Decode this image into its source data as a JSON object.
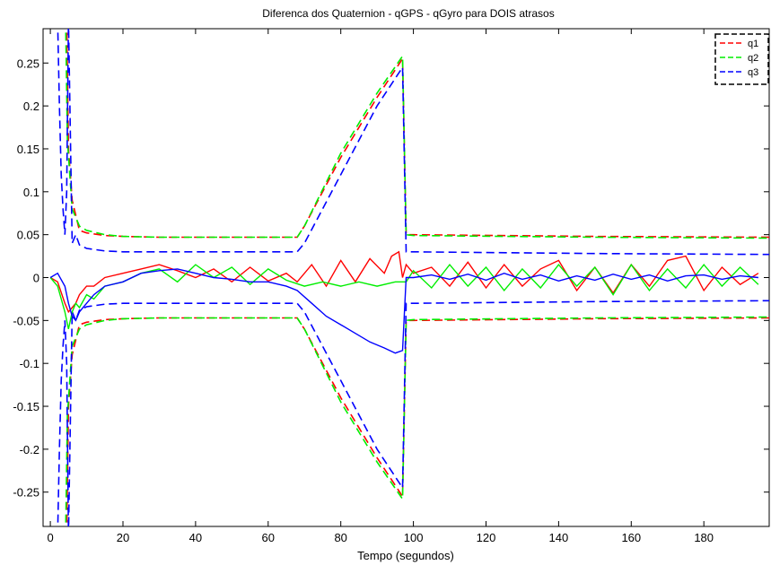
{
  "chart_data": {
    "type": "line",
    "title": "Diferenca dos Quaternion - qGPS - qGyro para DOIS atrasos",
    "xlabel": "Tempo (segundos)",
    "ylabel": "",
    "xlim": [
      -2,
      198
    ],
    "ylim": [
      -0.29,
      0.29
    ],
    "xticks": [
      0,
      20,
      40,
      60,
      80,
      100,
      120,
      140,
      160,
      180
    ],
    "yticks": [
      -0.25,
      -0.2,
      -0.15,
      -0.1,
      -0.05,
      0,
      0.05,
      0.1,
      0.15,
      0.2,
      0.25
    ],
    "xtick_labels": [
      "0",
      "20",
      "40",
      "60",
      "80",
      "100",
      "120",
      "140",
      "160",
      "180"
    ],
    "ytick_labels": [
      "-0.25",
      "-0.2",
      "-0.15",
      "-0.1",
      "-0.05",
      "0",
      "0.05",
      "0.1",
      "0.15",
      "0.2",
      "0.25"
    ],
    "grid": false,
    "legend_position": "top-right",
    "legend": [
      "q1",
      "q2",
      "q3"
    ],
    "series": [
      {
        "name": "q1",
        "color": "#ff0000",
        "values_x": [
          0,
          2,
          4,
          5,
          6,
          7,
          8,
          10,
          12,
          15,
          20,
          25,
          30,
          35,
          40,
          45,
          50,
          55,
          60,
          65,
          68,
          72,
          76,
          80,
          84,
          88,
          92,
          94,
          96,
          97,
          98,
          100,
          105,
          110,
          115,
          120,
          125,
          130,
          135,
          140,
          145,
          150,
          155,
          160,
          165,
          170,
          175,
          180,
          185,
          190,
          195
        ],
        "values_y": [
          0,
          -0.005,
          -0.03,
          -0.04,
          -0.035,
          -0.03,
          -0.02,
          -0.01,
          -0.01,
          0.0,
          0.005,
          0.01,
          0.015,
          0.008,
          0.0,
          0.01,
          -0.005,
          0.012,
          -0.004,
          0.005,
          -0.005,
          0.015,
          -0.01,
          0.02,
          -0.005,
          0.022,
          0.005,
          0.025,
          0.03,
          0.0,
          0.015,
          0.005,
          0.012,
          -0.01,
          0.018,
          -0.012,
          0.015,
          -0.01,
          0.01,
          0.02,
          -0.015,
          0.012,
          -0.018,
          0.015,
          -0.01,
          0.02,
          0.025,
          -0.015,
          0.012,
          -0.008,
          0.005
        ]
      },
      {
        "name": "q2",
        "color": "#00ee00",
        "values_x": [
          0,
          2,
          4,
          5,
          6,
          7,
          8,
          10,
          12,
          15,
          20,
          25,
          30,
          35,
          40,
          45,
          50,
          55,
          60,
          65,
          70,
          75,
          80,
          85,
          90,
          95,
          98,
          100,
          105,
          110,
          115,
          120,
          125,
          130,
          135,
          140,
          145,
          150,
          155,
          160,
          165,
          170,
          175,
          180,
          185,
          190,
          195
        ],
        "values_y": [
          0,
          -0.01,
          -0.04,
          -0.06,
          -0.04,
          -0.03,
          -0.035,
          -0.02,
          -0.025,
          -0.01,
          -0.005,
          0.005,
          0.01,
          -0.005,
          0.015,
          0.0,
          0.012,
          -0.008,
          0.01,
          -0.003,
          -0.01,
          -0.005,
          -0.01,
          -0.005,
          -0.01,
          -0.005,
          -0.005,
          0.008,
          -0.012,
          0.015,
          -0.01,
          0.012,
          -0.015,
          0.01,
          -0.012,
          0.015,
          -0.01,
          0.012,
          -0.02,
          0.015,
          -0.015,
          0.01,
          -0.012,
          0.015,
          -0.01,
          0.012,
          -0.008
        ]
      },
      {
        "name": "q3",
        "color": "#0000ff",
        "values_x": [
          0,
          2,
          4,
          5,
          6,
          7,
          8,
          10,
          12,
          15,
          20,
          25,
          30,
          35,
          40,
          45,
          50,
          55,
          60,
          65,
          68,
          72,
          76,
          80,
          84,
          88,
          92,
          95,
          97,
          98,
          100,
          105,
          110,
          115,
          120,
          125,
          130,
          135,
          140,
          145,
          150,
          155,
          160,
          165,
          170,
          175,
          180,
          185,
          190,
          195
        ],
        "values_y": [
          0,
          0.005,
          -0.01,
          -0.03,
          -0.045,
          -0.05,
          -0.04,
          -0.03,
          -0.02,
          -0.01,
          -0.005,
          0.005,
          0.008,
          0.01,
          0.005,
          0.0,
          -0.002,
          -0.005,
          -0.005,
          -0.01,
          -0.015,
          -0.03,
          -0.045,
          -0.055,
          -0.065,
          -0.075,
          -0.082,
          -0.088,
          -0.085,
          0.0,
          0.0,
          0.003,
          -0.002,
          0.004,
          -0.003,
          0.005,
          -0.002,
          0.003,
          -0.004,
          0.002,
          -0.003,
          0.004,
          -0.002,
          0.003,
          -0.004,
          0.002,
          0.003,
          -0.002,
          0.002,
          0.0
        ]
      },
      {
        "name": "q1 upper bound",
        "color": "#ff0000",
        "dashed": true,
        "values_x": [
          4.5,
          5,
          6,
          8,
          10,
          15,
          20,
          30,
          40,
          50,
          60,
          68,
          70,
          80,
          90,
          97,
          98,
          100,
          150,
          198
        ],
        "values_y": [
          0.3,
          0.15,
          0.09,
          0.055,
          0.052,
          0.049,
          0.048,
          0.047,
          0.047,
          0.047,
          0.047,
          0.047,
          0.06,
          0.14,
          0.21,
          0.255,
          0.05,
          0.05,
          0.048,
          0.047
        ]
      },
      {
        "name": "q1 lower bound",
        "color": "#ff0000",
        "dashed": true,
        "values_x": [
          4.5,
          5,
          6,
          8,
          10,
          15,
          20,
          30,
          40,
          50,
          60,
          68,
          70,
          80,
          90,
          97,
          98,
          100,
          150,
          198
        ],
        "values_y": [
          -0.3,
          -0.15,
          -0.09,
          -0.055,
          -0.052,
          -0.049,
          -0.048,
          -0.047,
          -0.047,
          -0.047,
          -0.047,
          -0.047,
          -0.06,
          -0.14,
          -0.21,
          -0.255,
          -0.05,
          -0.05,
          -0.048,
          -0.047
        ]
      },
      {
        "name": "q2 upper bound",
        "color": "#00ee00",
        "dashed": true,
        "values_x": [
          4.2,
          4.7,
          6,
          8,
          10,
          15,
          20,
          30,
          40,
          50,
          60,
          68,
          70,
          80,
          90,
          97,
          98,
          100,
          150,
          198
        ],
        "values_y": [
          0.3,
          0.16,
          0.08,
          0.06,
          0.055,
          0.05,
          0.048,
          0.047,
          0.047,
          0.047,
          0.047,
          0.047,
          0.06,
          0.145,
          0.215,
          0.258,
          0.05,
          0.049,
          0.047,
          0.046
        ]
      },
      {
        "name": "q2 lower bound",
        "color": "#00ee00",
        "dashed": true,
        "values_x": [
          4.2,
          4.7,
          6,
          8,
          10,
          15,
          20,
          30,
          40,
          50,
          60,
          68,
          70,
          80,
          90,
          97,
          98,
          100,
          150,
          198
        ],
        "values_y": [
          -0.3,
          -0.16,
          -0.08,
          -0.06,
          -0.055,
          -0.05,
          -0.048,
          -0.047,
          -0.047,
          -0.047,
          -0.047,
          -0.047,
          -0.06,
          -0.145,
          -0.215,
          -0.258,
          -0.05,
          -0.049,
          -0.047,
          -0.046
        ]
      },
      {
        "name": "q3 upper bound",
        "color": "#0000ff",
        "dashed": true,
        "values_x": [
          2,
          2.5,
          3,
          3.5,
          4,
          4.5,
          5,
          6,
          7,
          8,
          10,
          15,
          20,
          30,
          40,
          50,
          60,
          68,
          70,
          80,
          90,
          97,
          98,
          100,
          150,
          198
        ],
        "values_y": [
          0.3,
          0.2,
          0.12,
          0.08,
          0.05,
          0.1,
          0.3,
          0.04,
          0.05,
          0.038,
          0.034,
          0.031,
          0.03,
          0.03,
          0.03,
          0.03,
          0.03,
          0.03,
          0.04,
          0.12,
          0.2,
          0.245,
          0.03,
          0.03,
          0.028,
          0.027
        ]
      },
      {
        "name": "q3 lower bound",
        "color": "#0000ff",
        "dashed": true,
        "values_x": [
          2,
          2.5,
          3,
          3.5,
          4,
          4.5,
          5,
          6,
          7,
          8,
          10,
          15,
          20,
          30,
          40,
          50,
          60,
          68,
          70,
          80,
          90,
          97,
          98,
          100,
          150,
          198
        ],
        "values_y": [
          -0.3,
          -0.2,
          -0.12,
          -0.08,
          -0.05,
          -0.1,
          -0.3,
          -0.04,
          -0.05,
          -0.038,
          -0.034,
          -0.031,
          -0.03,
          -0.03,
          -0.03,
          -0.03,
          -0.03,
          -0.03,
          -0.04,
          -0.12,
          -0.2,
          -0.245,
          -0.03,
          -0.03,
          -0.028,
          -0.027
        ]
      }
    ]
  }
}
